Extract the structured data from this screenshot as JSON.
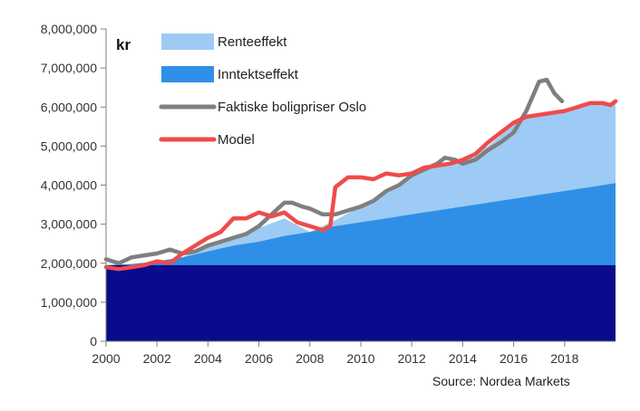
{
  "chart_data": {
    "type": "area",
    "unit_label": "kr",
    "source": "Source: Nordea Markets",
    "xlim": [
      2000,
      2020
    ],
    "ylim": [
      0,
      8000000
    ],
    "x_ticks": [
      2000,
      2002,
      2004,
      2006,
      2008,
      2010,
      2012,
      2014,
      2016,
      2018
    ],
    "y_ticks": [
      0,
      1000000,
      2000000,
      3000000,
      4000000,
      5000000,
      6000000,
      7000000,
      8000000
    ],
    "x_tick_labels": [
      "2000",
      "2002",
      "2004",
      "2006",
      "2008",
      "2010",
      "2012",
      "2014",
      "2016",
      "2018"
    ],
    "y_tick_labels": [
      "0",
      "1,000,000",
      "2,000,000",
      "3,000,000",
      "4,000,000",
      "5,000,000",
      "6,000,000",
      "7,000,000",
      "8,000,000"
    ],
    "legend_position": "top-left",
    "colors": {
      "base": "#0a0a8c",
      "inntektseffekt": "#2f8fe6",
      "renteeffekt": "#9dcbf5",
      "faktiske": "#7f7f7f",
      "model": "#ef4b4b",
      "axis": "#7f7f7f"
    },
    "base_level": 1950000,
    "series": [
      {
        "name": "Renteeffekt",
        "kind": "area",
        "x": [
          2000,
          2001,
          2002,
          2003,
          2004,
          2005,
          2006,
          2007,
          2008,
          2009,
          2010,
          2011,
          2012,
          2013,
          2014,
          2015,
          2016,
          2016.5,
          2017,
          2018,
          2019,
          2019.5,
          2020
        ],
        "y": [
          1900000,
          1950000,
          2050000,
          2150000,
          2450000,
          2650000,
          2900000,
          3150000,
          2800000,
          3100000,
          3450000,
          3800000,
          4200000,
          4500000,
          4600000,
          5000000,
          5550000,
          5750000,
          5800000,
          5950000,
          6050000,
          6050000,
          6150000
        ]
      },
      {
        "name": "Inntektseffekt",
        "kind": "area",
        "x": [
          2000,
          2001,
          2002,
          2003,
          2004,
          2005,
          2006,
          2007,
          2008,
          2009,
          2010,
          2011,
          2012,
          2013,
          2014,
          2015,
          2016,
          2017,
          2018,
          2019,
          2020
        ],
        "y": [
          1950000,
          1980000,
          2050000,
          2150000,
          2300000,
          2450000,
          2550000,
          2700000,
          2800000,
          2950000,
          3050000,
          3150000,
          3250000,
          3350000,
          3450000,
          3550000,
          3650000,
          3750000,
          3850000,
          3950000,
          4050000
        ]
      },
      {
        "name": "Faktiske boligpriser Oslo",
        "kind": "line",
        "x": [
          2000,
          2000.5,
          2001,
          2001.5,
          2002,
          2002.5,
          2003,
          2003.5,
          2004,
          2004.5,
          2005,
          2005.5,
          2006,
          2006.5,
          2007,
          2007.3,
          2007.7,
          2008,
          2008.5,
          2009,
          2009.5,
          2010,
          2010.5,
          2011,
          2011.5,
          2012,
          2012.5,
          2013,
          2013.3,
          2013.7,
          2014,
          2014.5,
          2015,
          2015.5,
          2016,
          2016.5,
          2017,
          2017.3,
          2017.6,
          2017.9
        ],
        "y": [
          2100000,
          2000000,
          2150000,
          2200000,
          2250000,
          2350000,
          2250000,
          2300000,
          2450000,
          2550000,
          2650000,
          2750000,
          2950000,
          3250000,
          3550000,
          3550000,
          3450000,
          3400000,
          3250000,
          3250000,
          3350000,
          3450000,
          3600000,
          3850000,
          4000000,
          4250000,
          4400000,
          4550000,
          4700000,
          4650000,
          4550000,
          4650000,
          4900000,
          5100000,
          5350000,
          5900000,
          6650000,
          6700000,
          6350000,
          6150000
        ]
      },
      {
        "name": "Model",
        "kind": "line",
        "x": [
          2000,
          2000.5,
          2001,
          2001.5,
          2002,
          2002.5,
          2003,
          2003.5,
          2004,
          2004.5,
          2005,
          2005.5,
          2006,
          2006.5,
          2007,
          2007.5,
          2008,
          2008.5,
          2008.8,
          2009,
          2009.5,
          2010,
          2010.5,
          2011,
          2011.5,
          2012,
          2012.5,
          2013,
          2013.5,
          2014,
          2014.5,
          2015,
          2015.5,
          2016,
          2016.5,
          2017,
          2017.5,
          2018,
          2018.5,
          2019,
          2019.5,
          2019.8,
          2020
        ],
        "y": [
          1900000,
          1850000,
          1900000,
          1950000,
          2050000,
          2000000,
          2250000,
          2450000,
          2650000,
          2800000,
          3150000,
          3150000,
          3300000,
          3200000,
          3300000,
          3050000,
          2950000,
          2850000,
          2950000,
          3950000,
          4200000,
          4200000,
          4150000,
          4300000,
          4250000,
          4300000,
          4450000,
          4500000,
          4550000,
          4650000,
          4800000,
          5100000,
          5350000,
          5600000,
          5750000,
          5800000,
          5850000,
          5900000,
          6000000,
          6100000,
          6100000,
          6050000,
          6150000
        ]
      }
    ],
    "legend": [
      {
        "label": "Renteeffekt",
        "type": "box",
        "color": "#9dcbf5"
      },
      {
        "label": "Inntektseffekt",
        "type": "box",
        "color": "#2f8fe6"
      },
      {
        "label": "Faktiske boligpriser Oslo",
        "type": "line",
        "color": "#7f7f7f"
      },
      {
        "label": "Model",
        "type": "line",
        "color": "#ef4b4b"
      }
    ]
  }
}
